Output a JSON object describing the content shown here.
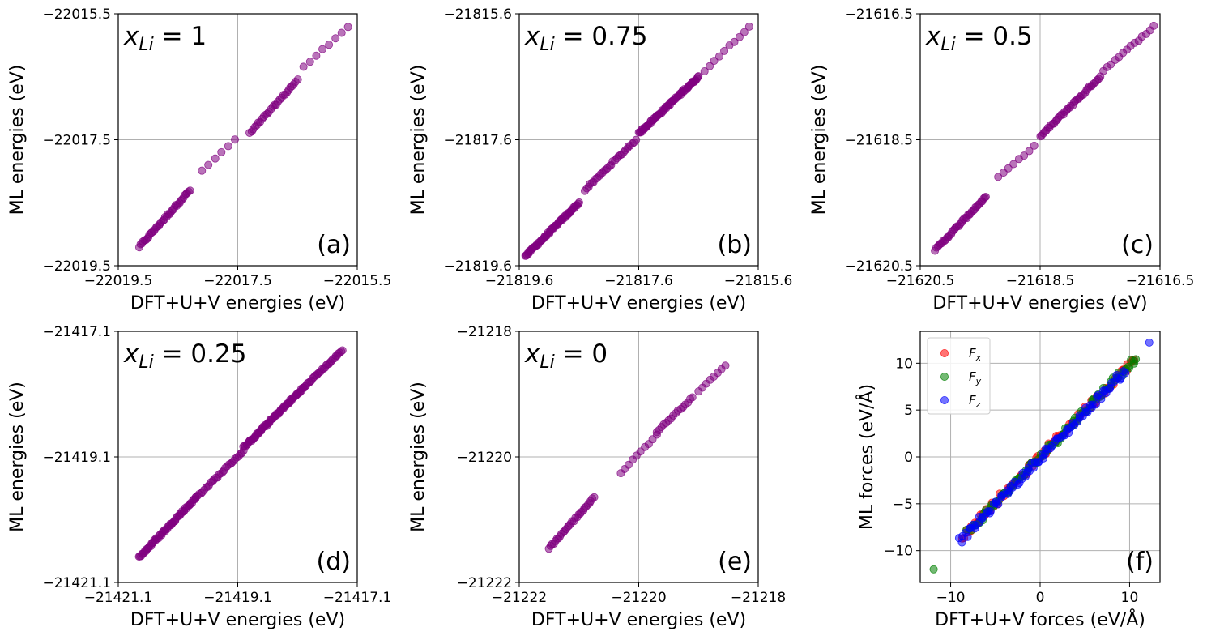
{
  "figure": {
    "colors": {
      "energy_points": "#800080",
      "fx": "#ff0000",
      "fy": "#008000",
      "fz": "#0000ff",
      "grid": "#b0b0b0",
      "frame": "#000000"
    }
  },
  "chart_data": [
    {
      "id": "a",
      "type": "scatter",
      "panel_tag": "(a)",
      "annotation": {
        "symbol": "x",
        "subscript": "Li",
        "value_text": " = 1"
      },
      "xlabel": "DFT+U+V energies (eV)",
      "ylabel": "ML energies (eV)",
      "xlim": [
        -22019.5,
        -22015.5
      ],
      "ylim": [
        -22019.5,
        -22015.5
      ],
      "xticks": [
        -22019.5,
        -22017.5,
        -22015.5
      ],
      "yticks": [
        -22019.5,
        -22017.5,
        -22015.5
      ],
      "xtick_labels": [
        "−22019.5",
        "−22017.5",
        "−22015.5"
      ],
      "ytick_labels": [
        "−22019.5",
        "−22017.5",
        "−22015.5"
      ],
      "grid": true,
      "segments": [
        {
          "x0": -22019.15,
          "x1": -22018.3,
          "y0": -22019.2,
          "y1": -22018.3,
          "n": 40
        },
        {
          "x0": -22018.1,
          "x1": -22017.55,
          "y0": -22018.0,
          "y1": -22017.5,
          "n": 6
        },
        {
          "x0": -22017.3,
          "x1": -22016.5,
          "y0": -22017.4,
          "y1": -22016.55,
          "n": 28
        },
        {
          "x0": -22016.4,
          "x1": -22015.65,
          "y0": -22016.35,
          "y1": -22015.7,
          "n": 8
        }
      ]
    },
    {
      "id": "b",
      "type": "scatter",
      "panel_tag": "(b)",
      "annotation": {
        "symbol": "x",
        "subscript": "Li",
        "value_text": " = 0.75"
      },
      "xlabel": "DFT+U+V energies (eV)",
      "ylabel": "ML energies (eV)",
      "xlim": [
        -21819.6,
        -21815.6
      ],
      "ylim": [
        -21819.6,
        -21815.6
      ],
      "xticks": [
        -21819.6,
        -21817.6,
        -21815.6
      ],
      "yticks": [
        -21819.6,
        -21817.6,
        -21815.6
      ],
      "xtick_labels": [
        "−21819.6",
        "−21817.6",
        "−21815.6"
      ],
      "ytick_labels": [
        "−21819.6",
        "−21817.6",
        "−21815.6"
      ],
      "grid": true,
      "segments": [
        {
          "x0": -21819.5,
          "x1": -21818.6,
          "y0": -21819.45,
          "y1": -21818.6,
          "n": 60
        },
        {
          "x0": -21818.5,
          "x1": -21817.65,
          "y0": -21818.4,
          "y1": -21817.6,
          "n": 30
        },
        {
          "x0": -21817.6,
          "x1": -21816.6,
          "y0": -21817.5,
          "y1": -21816.6,
          "n": 70
        },
        {
          "x0": -21816.5,
          "x1": -21815.75,
          "y0": -21816.5,
          "y1": -21815.8,
          "n": 10
        }
      ]
    },
    {
      "id": "c",
      "type": "scatter",
      "panel_tag": "(c)",
      "annotation": {
        "symbol": "x",
        "subscript": "Li",
        "value_text": " = 0.5"
      },
      "xlabel": "DFT+U+V energies (eV)",
      "ylabel": "ML energies (eV)",
      "xlim": [
        -21620.5,
        -21616.5
      ],
      "ylim": [
        -21620.5,
        -21616.5
      ],
      "xticks": [
        -21620.5,
        -21618.5,
        -21616.5
      ],
      "yticks": [
        -21620.5,
        -21618.5,
        -21616.5
      ],
      "xtick_labels": [
        "−21620.5",
        "−21618.5",
        "−21616.5"
      ],
      "ytick_labels": [
        "−21620.5",
        "−21618.5",
        "−21616.5"
      ],
      "grid": true,
      "segments": [
        {
          "x0": -21620.25,
          "x1": -21619.4,
          "y0": -21620.25,
          "y1": -21619.4,
          "n": 40
        },
        {
          "x0": -21619.2,
          "x1": -21618.6,
          "y0": -21619.1,
          "y1": -21618.6,
          "n": 8
        },
        {
          "x0": -21618.5,
          "x1": -21617.5,
          "y0": -21618.45,
          "y1": -21617.5,
          "n": 40
        },
        {
          "x0": -21617.45,
          "x1": -21616.6,
          "y0": -21617.4,
          "y1": -21616.7,
          "n": 14
        }
      ]
    },
    {
      "id": "d",
      "type": "scatter",
      "panel_tag": "(d)",
      "annotation": {
        "symbol": "x",
        "subscript": "Li",
        "value_text": " = 0.25"
      },
      "xlabel": "DFT+U+V energies (eV)",
      "ylabel": "ML energies (eV)",
      "xlim": [
        -21421.1,
        -21417.1
      ],
      "ylim": [
        -21421.1,
        -21417.1
      ],
      "xticks": [
        -21421.1,
        -21419.1,
        -21417.1
      ],
      "yticks": [
        -21421.1,
        -21419.1,
        -21417.1
      ],
      "xtick_labels": [
        "−21421.1",
        "−21419.1",
        "−21417.1"
      ],
      "ytick_labels": [
        "−21421.1",
        "−21419.1",
        "−21417.1"
      ],
      "grid": true,
      "segments": [
        {
          "x0": -21420.75,
          "x1": -21419.8,
          "y0": -21420.7,
          "y1": -21419.75,
          "n": 60
        },
        {
          "x0": -21419.8,
          "x1": -21419.0,
          "y0": -21419.75,
          "y1": -21419.0,
          "n": 30
        },
        {
          "x0": -21419.0,
          "x1": -21418.0,
          "y0": -21418.95,
          "y1": -21418.0,
          "n": 70
        },
        {
          "x0": -21418.0,
          "x1": -21417.35,
          "y0": -21418.0,
          "y1": -21417.4,
          "n": 30
        }
      ]
    },
    {
      "id": "e",
      "type": "scatter",
      "panel_tag": "(e)",
      "annotation": {
        "symbol": "x",
        "subscript": "Li",
        "value_text": " = 0"
      },
      "xlabel": "DFT+U+V energies (eV)",
      "ylabel": "ML energies (eV)",
      "xlim": [
        -21222,
        -21218
      ],
      "ylim": [
        -21222,
        -21218
      ],
      "xticks": [
        -21222,
        -21220,
        -21218
      ],
      "yticks": [
        -21222,
        -21220,
        -21218
      ],
      "xtick_labels": [
        "−21222",
        "−21220",
        "−21218"
      ],
      "ytick_labels": [
        "−21222",
        "−21220",
        "−21218"
      ],
      "grid": true,
      "segments": [
        {
          "x0": -21221.5,
          "x1": -21220.75,
          "y0": -21221.45,
          "y1": -21220.65,
          "n": 30
        },
        {
          "x0": -21220.3,
          "x1": -21219.7,
          "y0": -21220.25,
          "y1": -21219.65,
          "n": 10
        },
        {
          "x0": -21219.7,
          "x1": -21219.1,
          "y0": -21219.6,
          "y1": -21219.05,
          "n": 16
        },
        {
          "x0": -21219.0,
          "x1": -21218.55,
          "y0": -21218.95,
          "y1": -21218.55,
          "n": 8
        }
      ]
    },
    {
      "id": "f",
      "type": "scatter",
      "panel_tag": "(f)",
      "xlabel": "DFT+U+V forces (eV/Å)",
      "ylabel": "ML forces (eV/Å)",
      "xlim": [
        -13.4,
        13.4
      ],
      "ylim": [
        -13.4,
        13.4
      ],
      "xticks": [
        -10,
        0,
        10
      ],
      "yticks": [
        -10,
        -5,
        0,
        5,
        10
      ],
      "xtick_labels": [
        "−10",
        "0",
        "10"
      ],
      "ytick_labels": [
        "−10",
        "−5",
        "0",
        "5",
        "10"
      ],
      "grid": true,
      "legend": {
        "position": "top-left",
        "entries": [
          {
            "symbol": "F",
            "subscript": "x"
          },
          {
            "symbol": "F",
            "subscript": "y"
          },
          {
            "symbol": "F",
            "subscript": "z"
          }
        ]
      },
      "series": [
        {
          "name": "Fx",
          "segments": [
            {
              "x0": -8.7,
              "x1": 10.5,
              "y0": -8.5,
              "y1": 10.4,
              "n": 90
            }
          ]
        },
        {
          "name": "Fy",
          "segments": [
            {
              "x0": -8.2,
              "x1": 10.8,
              "y0": -8.1,
              "y1": 10.7,
              "n": 90
            }
          ],
          "extra_points": [
            {
              "x": -11.9,
              "y": -12.0
            }
          ]
        },
        {
          "name": "Fz",
          "segments": [
            {
              "x0": -9.0,
              "x1": 9.5,
              "y0": -9.0,
              "y1": 9.2,
              "n": 90
            }
          ],
          "extra_points": [
            {
              "x": 12.2,
              "y": 12.2
            }
          ]
        }
      ]
    }
  ]
}
